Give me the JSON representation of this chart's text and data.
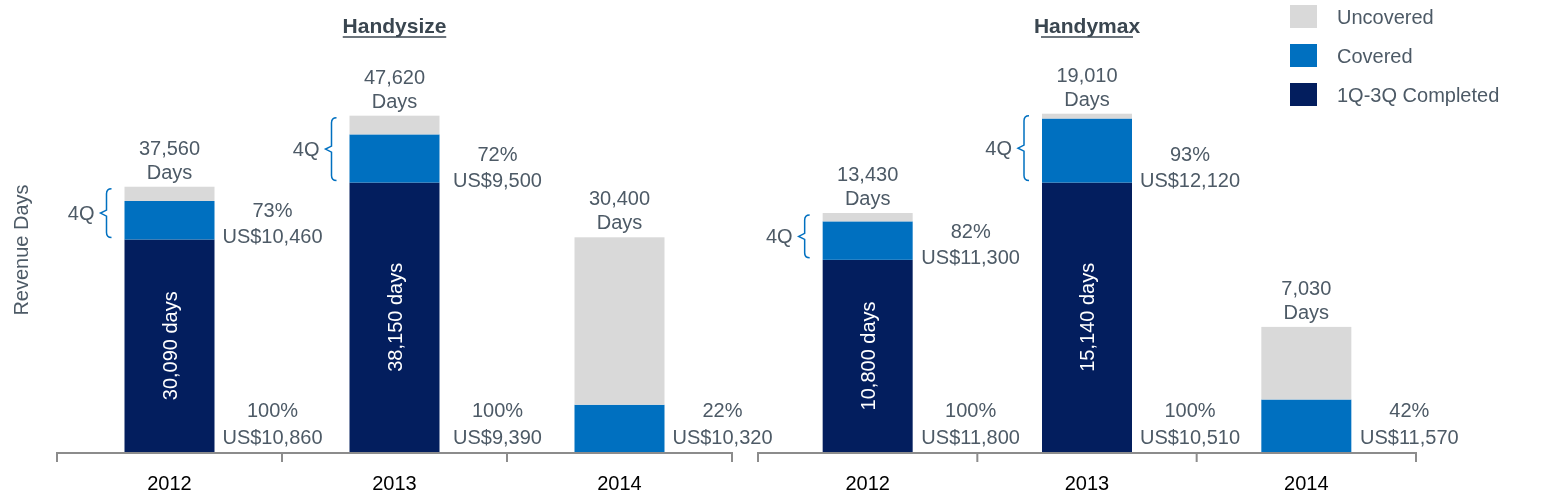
{
  "chart_data": [
    {
      "type": "bar",
      "stacked": true,
      "title": "Handysize",
      "ylabel": "Revenue Days",
      "categories": [
        "2012",
        "2013",
        "2014"
      ],
      "ylim": [
        0,
        64000
      ],
      "tick_labels": "x",
      "series": [
        {
          "color": "#031e5e",
          "values": [
            30090,
            38150,
            0
          ],
          "value_labels": [
            "30,090 days",
            "38,150 days",
            null
          ]
        },
        {
          "color": "#0070c0",
          "values": [
            5450,
            6820,
            6690
          ]
        },
        {
          "color": "#d9d9d9",
          "values": [
            2020,
            2650,
            23710
          ]
        }
      ],
      "totals": [
        "37,560 Days",
        "47,620 Days",
        "30,400 Days"
      ],
      "annotations": [
        "4Q",
        "73%",
        "US$10,460",
        "100%",
        "US$10,860",
        "4Q",
        "72%",
        "US$9,500",
        "100%",
        "US$9,390",
        "22%",
        "US$10,320"
      ]
    },
    {
      "type": "bar",
      "stacked": true,
      "title": "Handymax",
      "categories": [
        "2012",
        "2013",
        "2014"
      ],
      "ylim": [
        0,
        25400
      ],
      "tick_labels": "x",
      "legend": "top right",
      "series": [
        {
          "name": "1Q-3Q Completed",
          "color": "#031e5e",
          "values": [
            10800,
            15140,
            0
          ],
          "value_labels": [
            "10,800 days",
            "15,140 days",
            null
          ]
        },
        {
          "name": "Covered",
          "color": "#0070c0",
          "values": [
            2160,
            3600,
            2950
          ]
        },
        {
          "name": "Uncovered",
          "color": "#d9d9d9",
          "values": [
            470,
            270,
            4080
          ]
        }
      ],
      "totals": [
        "13,430 Days",
        "19,010 Days",
        "7,030 Days"
      ],
      "annotations": [
        "4Q",
        "82%",
        "US$11,300",
        "100%",
        "US$11,800",
        "4Q",
        "93%",
        "US$12,120",
        "100%",
        "US$10,510",
        "42%",
        "US$11,570"
      ]
    }
  ]
}
